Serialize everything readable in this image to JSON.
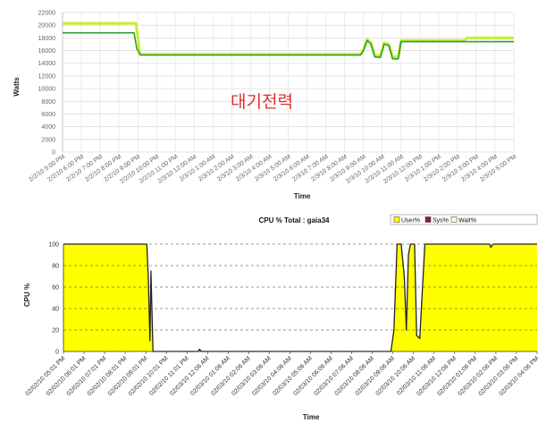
{
  "chart_data": [
    {
      "type": "line",
      "title": "",
      "xlabel": "Time",
      "ylabel": "Watts",
      "ylim": [
        0,
        22000
      ],
      "y_ticks": [
        0,
        2000,
        4000,
        6000,
        8000,
        10000,
        12000,
        14000,
        16000,
        18000,
        20000,
        22000
      ],
      "grid": true,
      "annotation": "대기전력",
      "x_tick_labels": [
        "2/2/10 5:00 PM",
        "2/2/10 6:00 PM",
        "2/2/10 7:00 PM",
        "2/2/10 8:00 PM",
        "2/2/10 9:00 PM",
        "2/2/10 10:00 PM",
        "2/2/10 11:00 PM",
        "2/3/10 12:00 AM",
        "2/3/10 1:00 AM",
        "2/3/10 2:00 AM",
        "2/3/10 3:00 AM",
        "2/3/10 4:00 AM",
        "2/3/10 5:00 AM",
        "2/3/10 6:00 AM",
        "2/3/10 7:00 AM",
        "2/3/10 8:00 AM",
        "2/3/10 9:00 AM",
        "2/3/10 10:00 AM",
        "2/3/10 11:00 AM",
        "2/3/10 12:00 PM",
        "2/3/10 1:00 PM",
        "2/3/10 2:00 PM",
        "2/3/10 3:00 PM",
        "2/3/10 4:00 PM",
        "2/3/10 5:00 PM"
      ],
      "x_range": [
        0,
        24
      ],
      "series": [
        {
          "color": "#c8ee30",
          "points": [
            [
              0,
              20300
            ],
            [
              3.9,
              20300
            ],
            [
              4.05,
              17000
            ],
            [
              4.1,
              15400
            ],
            [
              15.85,
              15400
            ],
            [
              16.0,
              16200
            ],
            [
              16.2,
              17800
            ],
            [
              16.4,
              17200
            ],
            [
              16.6,
              15300
            ],
            [
              16.9,
              15200
            ],
            [
              17.1,
              17200
            ],
            [
              17.35,
              17000
            ],
            [
              17.55,
              15000
            ],
            [
              17.85,
              15000
            ],
            [
              18.0,
              17600
            ],
            [
              21.4,
              17600
            ],
            [
              21.5,
              18000
            ],
            [
              24,
              18000
            ]
          ]
        },
        {
          "color": "#2e9e2e",
          "points": [
            [
              0,
              18800
            ],
            [
              3.8,
              18800
            ],
            [
              3.95,
              16300
            ],
            [
              4.15,
              15300
            ],
            [
              15.85,
              15300
            ],
            [
              16.0,
              16000
            ],
            [
              16.2,
              17600
            ],
            [
              16.4,
              17000
            ],
            [
              16.6,
              15000
            ],
            [
              16.9,
              14900
            ],
            [
              17.1,
              17000
            ],
            [
              17.35,
              16800
            ],
            [
              17.55,
              14700
            ],
            [
              17.85,
              14700
            ],
            [
              18.0,
              17400
            ],
            [
              24,
              17400
            ]
          ]
        }
      ]
    },
    {
      "type": "area",
      "title": "CPU % Total : gaia34",
      "xlabel": "Time",
      "ylabel": "CPU %",
      "ylim": [
        0,
        100
      ],
      "y_ticks": [
        0,
        20,
        40,
        60,
        80,
        100
      ],
      "grid": true,
      "legend": [
        "User%",
        "Sys%",
        "Wait%"
      ],
      "legend_colors": [
        "#ffff00",
        "#8b1a4a",
        "#ffffe0"
      ],
      "legend_position": "top-right",
      "x_tick_labels": [
        "02/02/10 05:01 PM",
        "02/02/10 06:01 PM",
        "02/02/10 07:01 PM",
        "02/02/10 08:01 PM",
        "02/02/10 09:01 PM",
        "02/02/10 10:01 PM",
        "02/02/10 11:01 PM",
        "02/03/10 12:06 AM",
        "02/03/10 01:06 AM",
        "02/03/10 02:06 AM",
        "02/03/10 03:06 AM",
        "02/03/10 04:06 AM",
        "02/03/10 05:06 AM",
        "02/03/10 06:06 AM",
        "02/03/10 07:06 AM",
        "02/03/10 08:06 AM",
        "02/03/10 09:06 AM",
        "02/03/10 10:06 AM",
        "02/03/10 11:06 AM",
        "02/03/10 12:06 PM",
        "02/03/10 01:06 PM",
        "02/03/10 02:06 PM",
        "02/03/10 03:06 PM",
        "02/03/10 04:06 PM"
      ],
      "x_range": [
        0,
        23
      ],
      "series": [
        {
          "name": "User%",
          "color": "#ffff00",
          "points": [
            [
              0,
              100
            ],
            [
              4.05,
              100
            ],
            [
              4.12,
              70
            ],
            [
              4.2,
              10
            ],
            [
              4.25,
              75
            ],
            [
              4.35,
              0
            ],
            [
              6.55,
              0
            ],
            [
              6.6,
              2
            ],
            [
              6.7,
              0
            ],
            [
              15.9,
              0
            ],
            [
              16.05,
              20
            ],
            [
              16.2,
              100
            ],
            [
              16.4,
              100
            ],
            [
              16.55,
              70
            ],
            [
              16.65,
              20
            ],
            [
              16.75,
              90
            ],
            [
              16.85,
              100
            ],
            [
              17.05,
              100
            ],
            [
              17.15,
              15
            ],
            [
              17.3,
              12
            ],
            [
              17.55,
              100
            ],
            [
              20.7,
              100
            ],
            [
              20.75,
              97
            ],
            [
              20.85,
              100
            ],
            [
              23,
              100
            ]
          ]
        }
      ]
    }
  ]
}
